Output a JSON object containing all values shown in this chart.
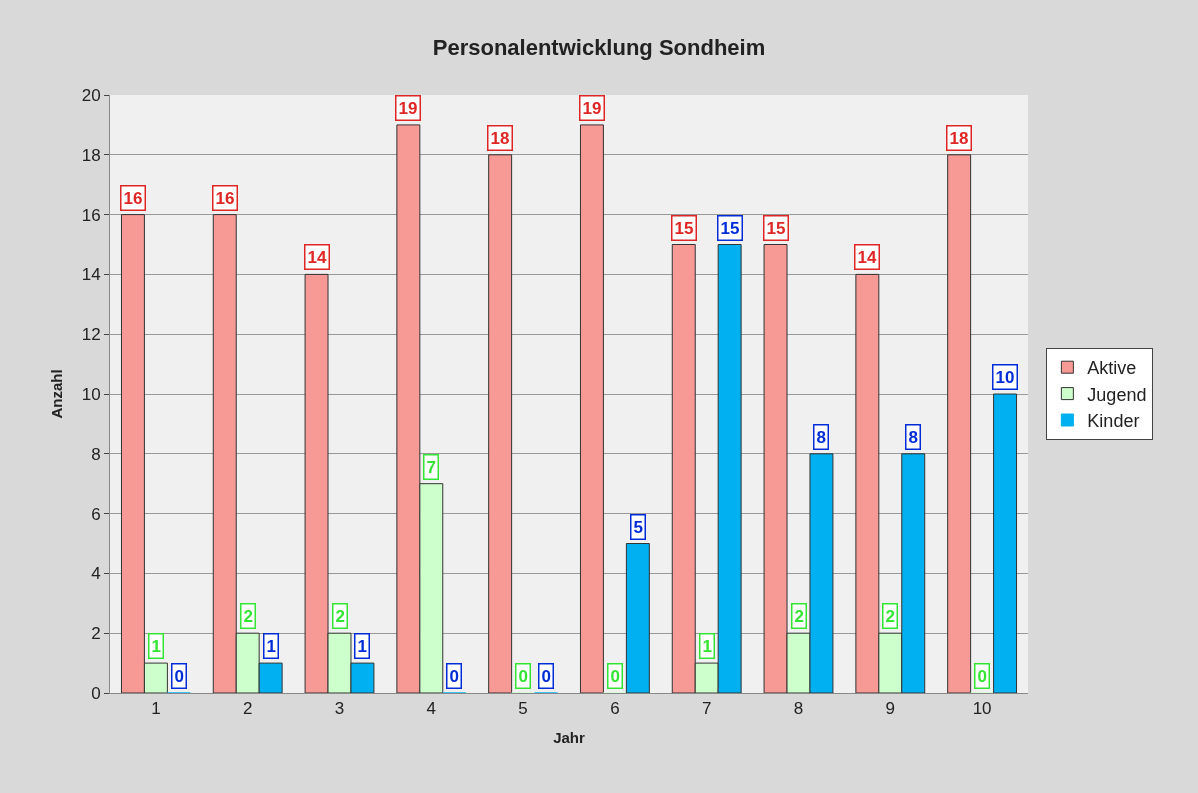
{
  "chart_data": {
    "type": "bar",
    "title": "Personalentwicklung Sondheim",
    "xlabel": "Jahr",
    "ylabel": "Anzahl",
    "categories": [
      "1",
      "2",
      "3",
      "4",
      "5",
      "6",
      "7",
      "8",
      "9",
      "10"
    ],
    "series": [
      {
        "name": "Aktive",
        "color": "#f79995",
        "values": [
          16,
          16,
          14,
          19,
          18,
          19,
          15,
          15,
          14,
          18
        ]
      },
      {
        "name": "Jugend",
        "color": "#ccffcc",
        "values": [
          1,
          2,
          2,
          7,
          0,
          0,
          1,
          2,
          2,
          0
        ]
      },
      {
        "name": "Kinder",
        "color": "#00b0f0",
        "values": [
          0,
          1,
          1,
          0,
          0,
          5,
          15,
          8,
          8,
          10
        ]
      }
    ],
    "ylim": [
      0,
      20
    ],
    "yticks": [
      0,
      2,
      4,
      6,
      8,
      10,
      12,
      14,
      16,
      18,
      20
    ],
    "grid": "y",
    "legend": "right",
    "data_labels": true
  }
}
